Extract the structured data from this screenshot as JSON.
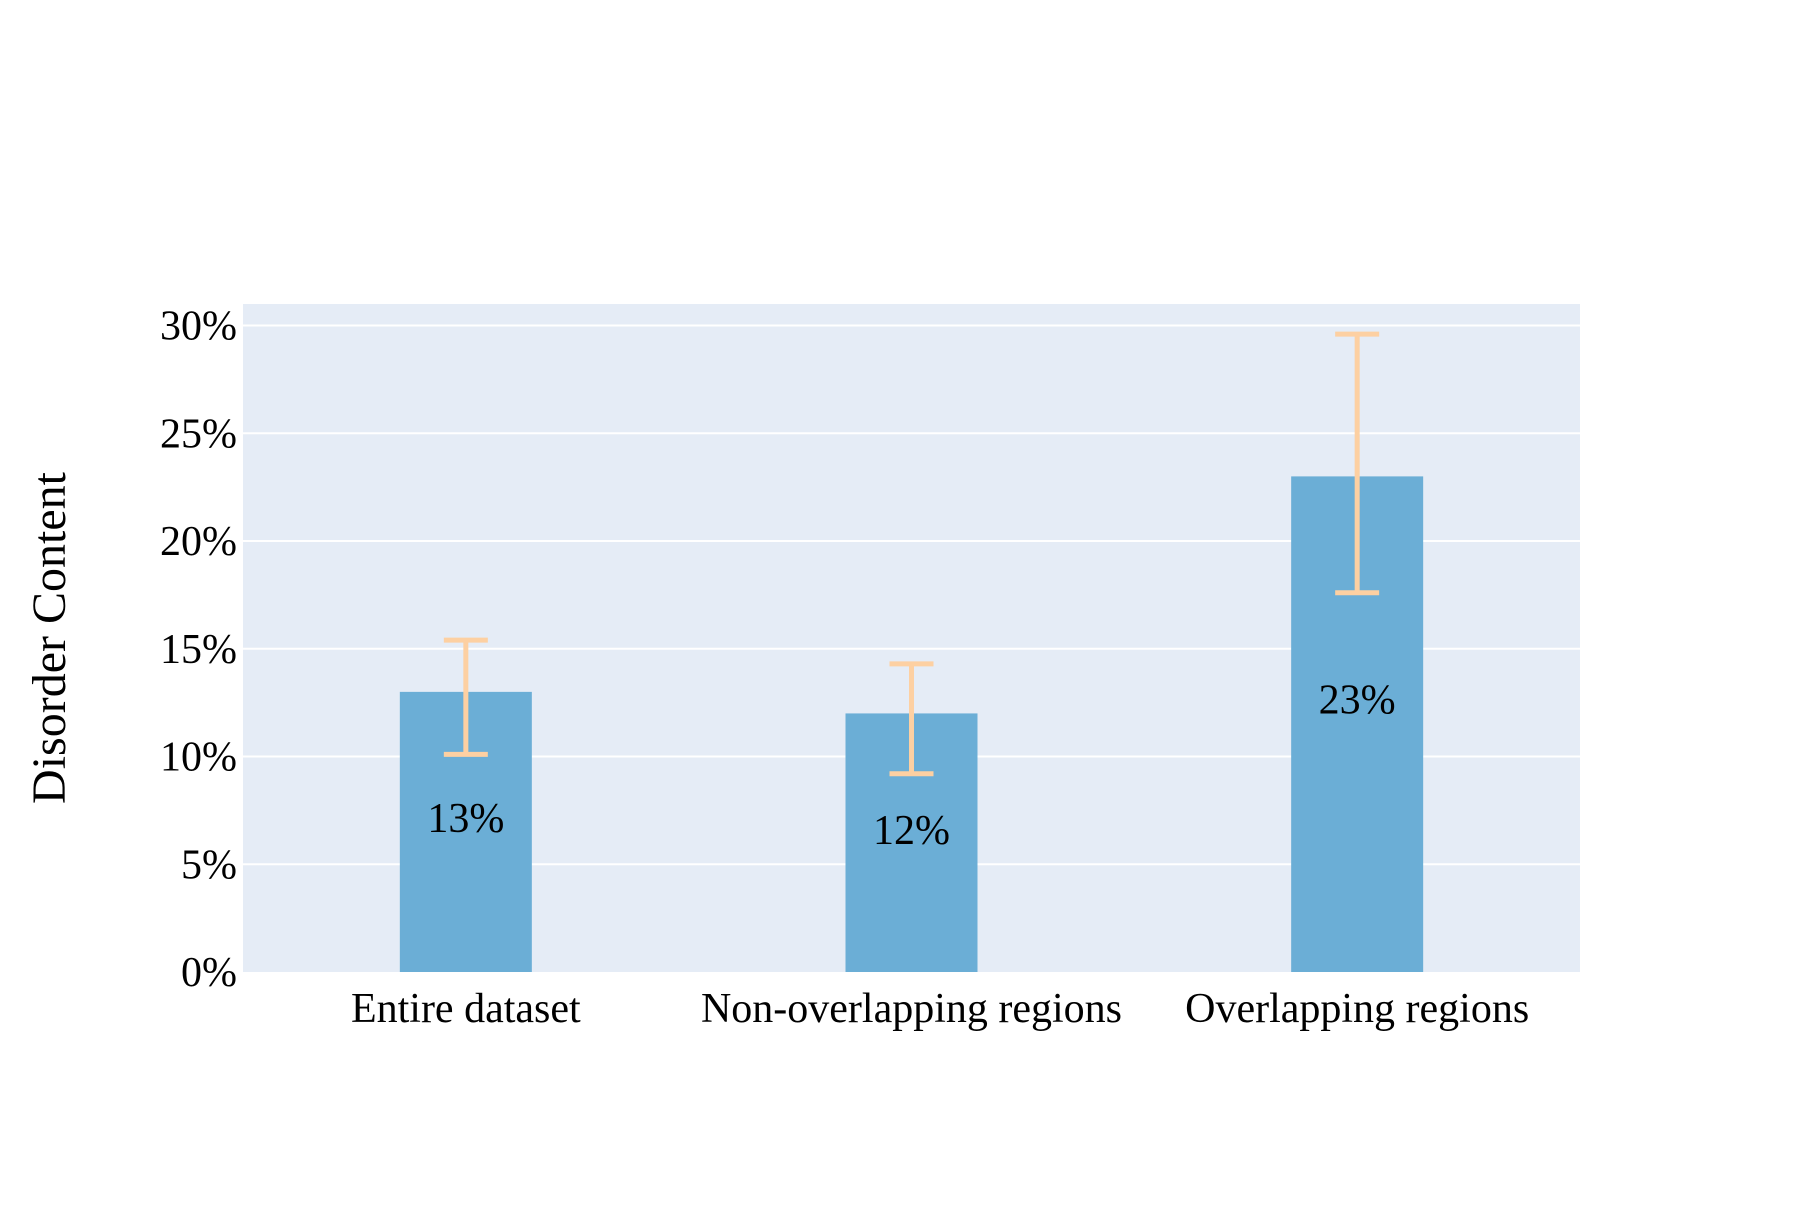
{
  "chart_data": {
    "type": "bar",
    "title": "",
    "xlabel": "",
    "ylabel": "Disorder Content",
    "categories": [
      "Entire dataset",
      "Non-overlapping regions",
      "Overlapping regions"
    ],
    "values": [
      13,
      12,
      23
    ],
    "data_labels": [
      "13%",
      "12%",
      "23%"
    ],
    "error_bars": [
      {
        "low": 10.1,
        "high": 15.4
      },
      {
        "low": 9.2,
        "high": 14.3
      },
      {
        "low": 17.6,
        "high": 29.6
      }
    ],
    "ylim": [
      0,
      31
    ],
    "yticks": [
      0,
      5,
      10,
      15,
      20,
      25,
      30
    ],
    "ytick_labels": [
      "0%",
      "5%",
      "10%",
      "15%",
      "20%",
      "25%",
      "30%"
    ],
    "grid": true,
    "colors": {
      "bar": "#6baed6",
      "error_bar": "#fdd0a2",
      "plot_background": "#e5ecf6",
      "gridline": "#ffffff"
    }
  }
}
